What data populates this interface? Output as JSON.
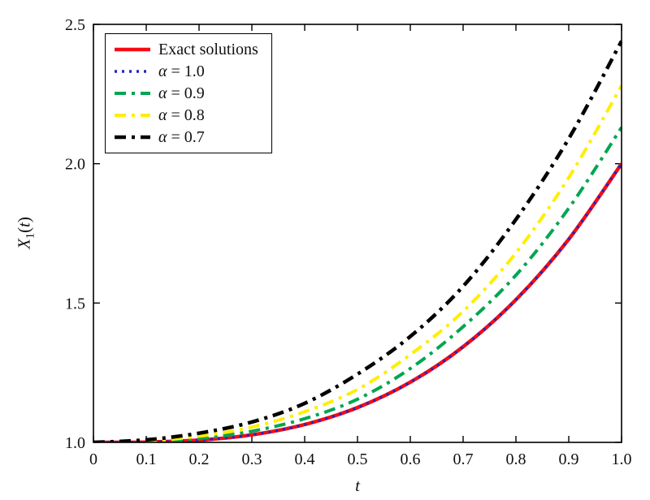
{
  "figure": {
    "background": "#ffffff",
    "border_color": "#000000"
  },
  "chart_data": {
    "type": "line",
    "title": "",
    "xlabel": "t",
    "ylabel": "X_1(t)",
    "xlim": [
      0,
      1.0
    ],
    "ylim": [
      1.0,
      2.5
    ],
    "grid": false,
    "legend_position": "top-left",
    "x_ticks": [
      0,
      0.1,
      0.2,
      0.3,
      0.4,
      0.5,
      0.6,
      0.7,
      0.8,
      0.9,
      1.0
    ],
    "x_tick_labels": [
      "0",
      "0.1",
      "0.2",
      "0.3",
      "0.4",
      "0.5",
      "0.6",
      "0.7",
      "0.8",
      "0.9",
      "1.0"
    ],
    "y_ticks": [
      1.0,
      1.5,
      2.0,
      2.5
    ],
    "y_tick_labels": [
      "1.0",
      "1.5",
      "2.0",
      "2.5"
    ],
    "x": [
      0,
      0.1,
      0.2,
      0.3,
      0.4,
      0.5,
      0.6,
      0.7,
      0.8,
      0.9,
      1.0
    ],
    "series": [
      {
        "name": "Exact solutions",
        "color": "#f50c14",
        "style": "solid",
        "width": 4.5,
        "values": [
          1.0,
          1.001,
          1.008,
          1.027,
          1.064,
          1.125,
          1.216,
          1.343,
          1.512,
          1.729,
          2.0
        ]
      },
      {
        "name": "α = 1.0",
        "color": "#2626bd",
        "style": "dotted",
        "width": 3.5,
        "values": [
          1.0,
          1.001,
          1.008,
          1.027,
          1.064,
          1.125,
          1.216,
          1.343,
          1.512,
          1.729,
          2.0
        ]
      },
      {
        "name": "α = 0.9",
        "color": "#00a651",
        "style": "dashdot",
        "width": 4,
        "values": [
          1.0,
          1.003,
          1.014,
          1.04,
          1.085,
          1.155,
          1.265,
          1.415,
          1.6,
          1.84,
          2.13
        ]
      },
      {
        "name": "α = 0.8",
        "color": "#ffee00",
        "style": "dashdot",
        "width": 4,
        "values": [
          1.0,
          1.005,
          1.022,
          1.055,
          1.11,
          1.19,
          1.315,
          1.47,
          1.68,
          1.95,
          2.28
        ]
      },
      {
        "name": "α = 0.7",
        "color": "#000000",
        "style": "dashdot",
        "width": 4.5,
        "values": [
          1.0,
          1.009,
          1.033,
          1.073,
          1.14,
          1.245,
          1.38,
          1.56,
          1.8,
          2.09,
          2.44
        ]
      }
    ]
  }
}
